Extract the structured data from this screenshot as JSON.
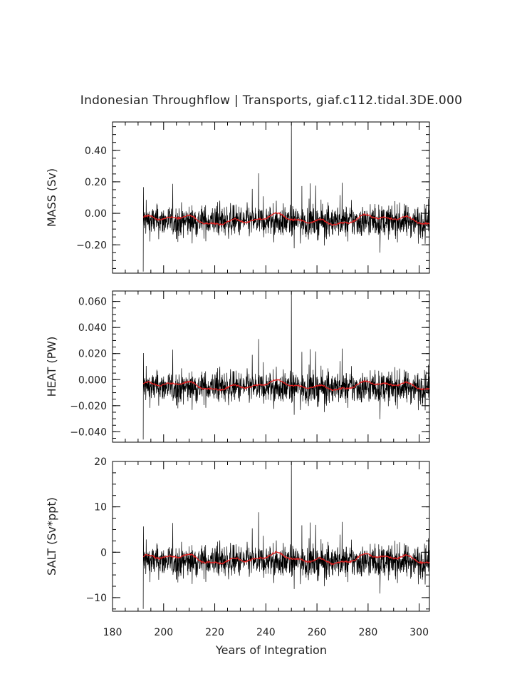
{
  "chart_data": {
    "type": "line",
    "title": "Indonesian Throughflow | Transports, giaf.c112.tidal.3DE.000",
    "xlabel": "Years of Integration",
    "xlim": [
      180,
      304
    ],
    "xticks": [
      "180",
      "200",
      "220",
      "240",
      "260",
      "280",
      "300"
    ],
    "x_start": 192,
    "x_end": 304,
    "samples_per_year": 12,
    "series_colors": {
      "monthly": "#000000",
      "running_mean": "#e02020"
    },
    "panels": [
      {
        "id": "mass",
        "ylabel": "MASS (Sv)",
        "ylim": [
          -0.38,
          0.58
        ],
        "yticks": [
          "0.40",
          "0.20",
          "0.00",
          "−0.20"
        ],
        "ytick_values": [
          0.4,
          0.2,
          0.0,
          -0.2
        ],
        "mean": -0.05,
        "amplitude": 0.09,
        "running_mean_range": [
          -0.1,
          0.03
        ],
        "spike": {
          "x": 250,
          "value": 0.57
        },
        "min_spike": {
          "x": 192,
          "value": -0.37
        }
      },
      {
        "id": "heat",
        "ylabel": "HEAT (PW)",
        "ylim": [
          -0.048,
          0.068
        ],
        "yticks": [
          "0.060",
          "0.040",
          "0.020",
          "0.000",
          "−0.020",
          "−0.040"
        ],
        "ytick_values": [
          0.06,
          0.04,
          0.02,
          0.0,
          -0.02,
          -0.04
        ],
        "mean": -0.006,
        "amplitude": 0.011,
        "running_mean_range": [
          -0.011,
          0.003
        ],
        "spike": {
          "x": 250,
          "value": 0.067
        },
        "min_spike": {
          "x": 192,
          "value": -0.046
        }
      },
      {
        "id": "salt",
        "ylabel": "SALT (Sv*ppt)",
        "ylim": [
          -13,
          20
        ],
        "yticks": [
          "20",
          "10",
          "0",
          "−10"
        ],
        "ytick_values": [
          20,
          10,
          0,
          -10
        ],
        "mean": -2,
        "amplitude": 3.2,
        "running_mean_range": [
          -3.5,
          1
        ],
        "spike": {
          "x": 250,
          "value": 20
        },
        "min_spike": {
          "x": 192,
          "value": -12.5
        }
      }
    ]
  }
}
